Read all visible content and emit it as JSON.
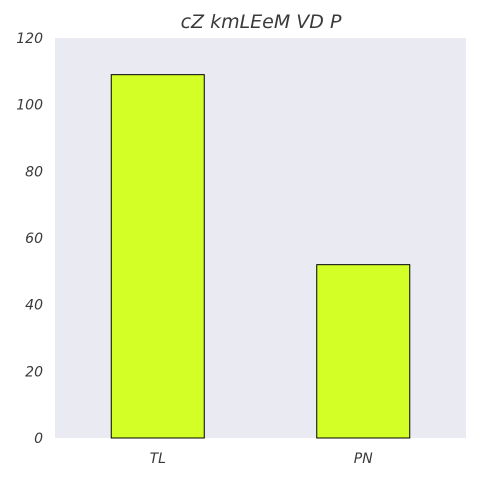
{
  "chart_data": {
    "type": "bar",
    "title": "cZ kmLEeM VD P",
    "xlabel": "",
    "ylabel": "",
    "categories": [
      "TL",
      "PN"
    ],
    "values": [
      109,
      52
    ],
    "ylim": [
      0,
      120
    ],
    "yticks": [
      0,
      20,
      40,
      60,
      80,
      100,
      120
    ],
    "grid": false,
    "bar_color": "#d4ff26",
    "bar_edge_color": "#000000",
    "plot_background": "#eaeaf2"
  }
}
